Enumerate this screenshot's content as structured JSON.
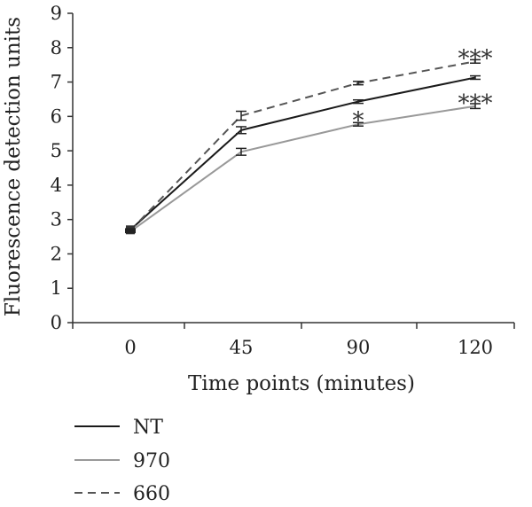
{
  "chart_data": {
    "type": "line",
    "xlabel": "Time points (minutes)",
    "ylabel": "Fluorescence detection units",
    "categories": [
      "0",
      "45",
      "90",
      "120"
    ],
    "ylim": [
      0,
      9
    ],
    "yticks": [
      "0",
      "1",
      "2",
      "3",
      "4",
      "5",
      "6",
      "7",
      "8",
      "9"
    ],
    "grid": false,
    "legend_position": "bottom-left",
    "series": [
      {
        "name": "NT",
        "color": "#1a1a1a",
        "dash": "solid",
        "values": [
          2.7,
          5.6,
          6.43,
          7.13
        ],
        "errors": [
          0.03,
          0.1,
          0.05,
          0.05
        ]
      },
      {
        "name": "970",
        "color": "#999999",
        "dash": "solid",
        "values": [
          2.65,
          4.97,
          5.77,
          6.3
        ],
        "errors": [
          0.03,
          0.1,
          0.05,
          0.07
        ]
      },
      {
        "name": "660",
        "color": "#555555",
        "dash": "dashed",
        "values": [
          2.68,
          6.02,
          6.97,
          7.6
        ],
        "errors": [
          0.03,
          0.13,
          0.05,
          0.05
        ]
      }
    ],
    "annotations": [
      {
        "text": "***",
        "x": "120",
        "y": 7.85
      },
      {
        "text": "*",
        "x": "90",
        "y": 6.05
      },
      {
        "text": "***",
        "x": "120",
        "y": 6.55
      }
    ]
  }
}
